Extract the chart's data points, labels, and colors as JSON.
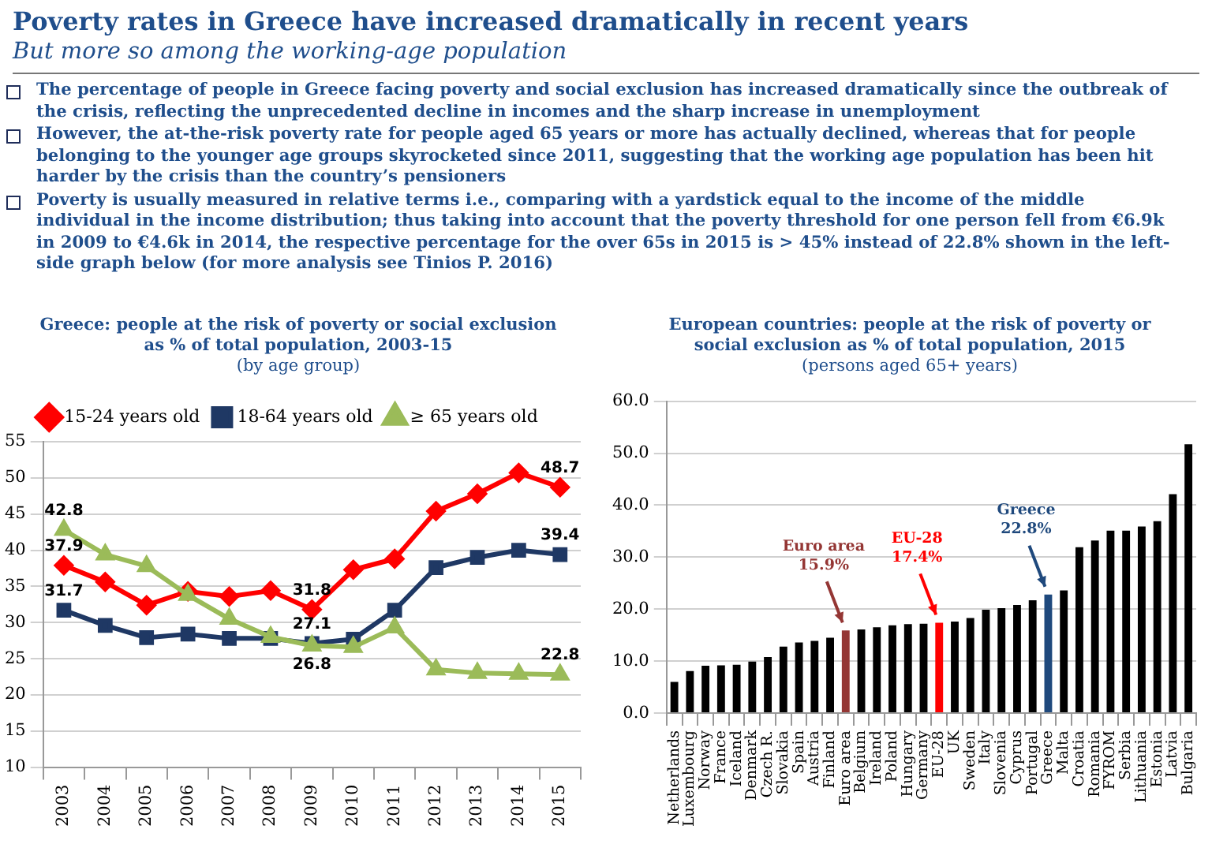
{
  "chart_data": [
    {
      "type": "other",
      "title": "Poverty rates in Greece have increased dramatically in recent years",
      "subtitle": "But more so among the working-age population",
      "annotations": [
        "The percentage of people in Greece facing poverty and social exclusion has increased dramatically since the outbreak of the crisis, reflecting the unprecedented decline in incomes and the sharp increase in unemployment",
        "However, the at-the-risk poverty rate for people aged 65 years or more has actually declined, whereas that for people belonging to the younger age groups skyrocketed since 2011, suggesting that the working age population has been hit harder by the crisis than the country’s pensioners",
        "Poverty is usually measured in relative terms i.e., comparing with a yardstick equal to the income of the middle individual in the income distribution; thus taking into account that the poverty threshold for one person fell from €6.9k in 2009 to €4.6k in 2014, the respective percentage for the over 65s in 2015 is > 45% instead of 22.8% shown in the left-side graph below (for more analysis see Tinios P. 2016)"
      ]
    },
    {
      "type": "line",
      "title": "Greece: people at the risk of poverty or social exclusion as % of total population, 2003-15",
      "subtitle": "(by age group)",
      "categories": [
        "2003",
        "2004",
        "2005",
        "2006",
        "2007",
        "2008",
        "2009",
        "2010",
        "2011",
        "2012",
        "2013",
        "2014",
        "2015"
      ],
      "series": [
        {
          "name": "15-24 years old",
          "color": "#ff0000",
          "marker": "diamond",
          "values": [
            37.9,
            35.6,
            32.4,
            34.3,
            33.6,
            34.4,
            31.8,
            37.3,
            38.8,
            45.4,
            47.8,
            50.7,
            48.7
          ],
          "value_labels": [
            "37.9",
            null,
            null,
            null,
            null,
            null,
            "31.8",
            null,
            null,
            null,
            null,
            null,
            "48.7"
          ]
        },
        {
          "name": "18-64 years old",
          "color": "#1f3864",
          "marker": "square",
          "values": [
            31.7,
            29.6,
            27.9,
            28.4,
            27.8,
            27.8,
            27.1,
            27.7,
            31.7,
            37.6,
            39.0,
            40.0,
            39.4
          ],
          "value_labels": [
            "31.7",
            null,
            null,
            null,
            null,
            null,
            "27.1",
            null,
            null,
            null,
            null,
            null,
            "39.4"
          ]
        },
        {
          "name": "≥ 65 years old",
          "color": "#9bbb59",
          "marker": "triangle",
          "values": [
            42.8,
            39.4,
            37.8,
            33.8,
            30.5,
            28.0,
            26.8,
            26.6,
            29.3,
            23.5,
            23.0,
            22.9,
            22.8
          ],
          "value_labels": [
            "42.8",
            null,
            null,
            null,
            null,
            null,
            "26.8",
            null,
            null,
            null,
            null,
            null,
            "22.8"
          ]
        }
      ],
      "ylim": [
        10,
        55
      ],
      "yticks": [
        10,
        15,
        20,
        25,
        30,
        35,
        40,
        45,
        50,
        55
      ],
      "grid": "y",
      "legend": "top"
    },
    {
      "type": "bar",
      "title": "European countries: people at the risk of poverty or social  exclusion as % of total population, 2015",
      "subtitle": "(persons aged 65+ years)",
      "categories": [
        "Netherlands",
        "Luxembourg",
        "Norway",
        "France",
        "Iceland",
        "Denmark",
        "Czech R.",
        "Slovakia",
        "Spain",
        "Austria",
        "Finland",
        "Euro area",
        "Belgium",
        "Ireland",
        "Poland",
        "Hungary",
        "Germany",
        "EU-28",
        "UK",
        "Sweden",
        "Italy",
        "Slovenia",
        "Cyprus",
        "Portugal",
        "Greece",
        "Malta",
        "Croatia",
        "Romania",
        "FYROM",
        "Serbia",
        "Lithuania",
        "Estonia",
        "Latvia",
        "Bulgaria"
      ],
      "values": [
        6.0,
        8.1,
        9.1,
        9.2,
        9.3,
        9.9,
        10.8,
        12.8,
        13.6,
        13.9,
        14.5,
        15.9,
        16.1,
        16.5,
        16.9,
        17.1,
        17.2,
        17.4,
        17.6,
        18.3,
        19.9,
        20.2,
        20.8,
        21.7,
        22.8,
        23.6,
        31.9,
        33.2,
        35.1,
        35.1,
        35.9,
        36.9,
        42.1,
        51.7
      ],
      "colors": [
        "#000000",
        "#000000",
        "#000000",
        "#000000",
        "#000000",
        "#000000",
        "#000000",
        "#000000",
        "#000000",
        "#000000",
        "#000000",
        "#943634",
        "#000000",
        "#000000",
        "#000000",
        "#000000",
        "#000000",
        "#ff0000",
        "#000000",
        "#000000",
        "#000000",
        "#000000",
        "#000000",
        "#000000",
        "#1f497d",
        "#000000",
        "#000000",
        "#000000",
        "#000000",
        "#000000",
        "#000000",
        "#000000",
        "#000000",
        "#000000"
      ],
      "annotations": [
        {
          "text": "Euro area\n15.9%",
          "x": "Euro area",
          "y": 15.9
        },
        {
          "text": "EU-28\n17.4%",
          "x": "EU-28",
          "y": 17.4
        },
        {
          "text": "Greece\n22.8%",
          "x": "Greece",
          "y": 22.8
        }
      ],
      "ylim": [
        0,
        60
      ],
      "yticks": [
        {
          "value": 0,
          "label": "0.0"
        },
        {
          "value": 10,
          "label": "10.0"
        },
        {
          "value": 20,
          "label": "20.0"
        },
        {
          "value": 30,
          "label": "30.0"
        },
        {
          "value": 40,
          "label": "40.0"
        },
        {
          "value": 50,
          "label": "50.0"
        },
        {
          "value": 60,
          "label": "60.0"
        }
      ],
      "grid": "y"
    }
  ]
}
